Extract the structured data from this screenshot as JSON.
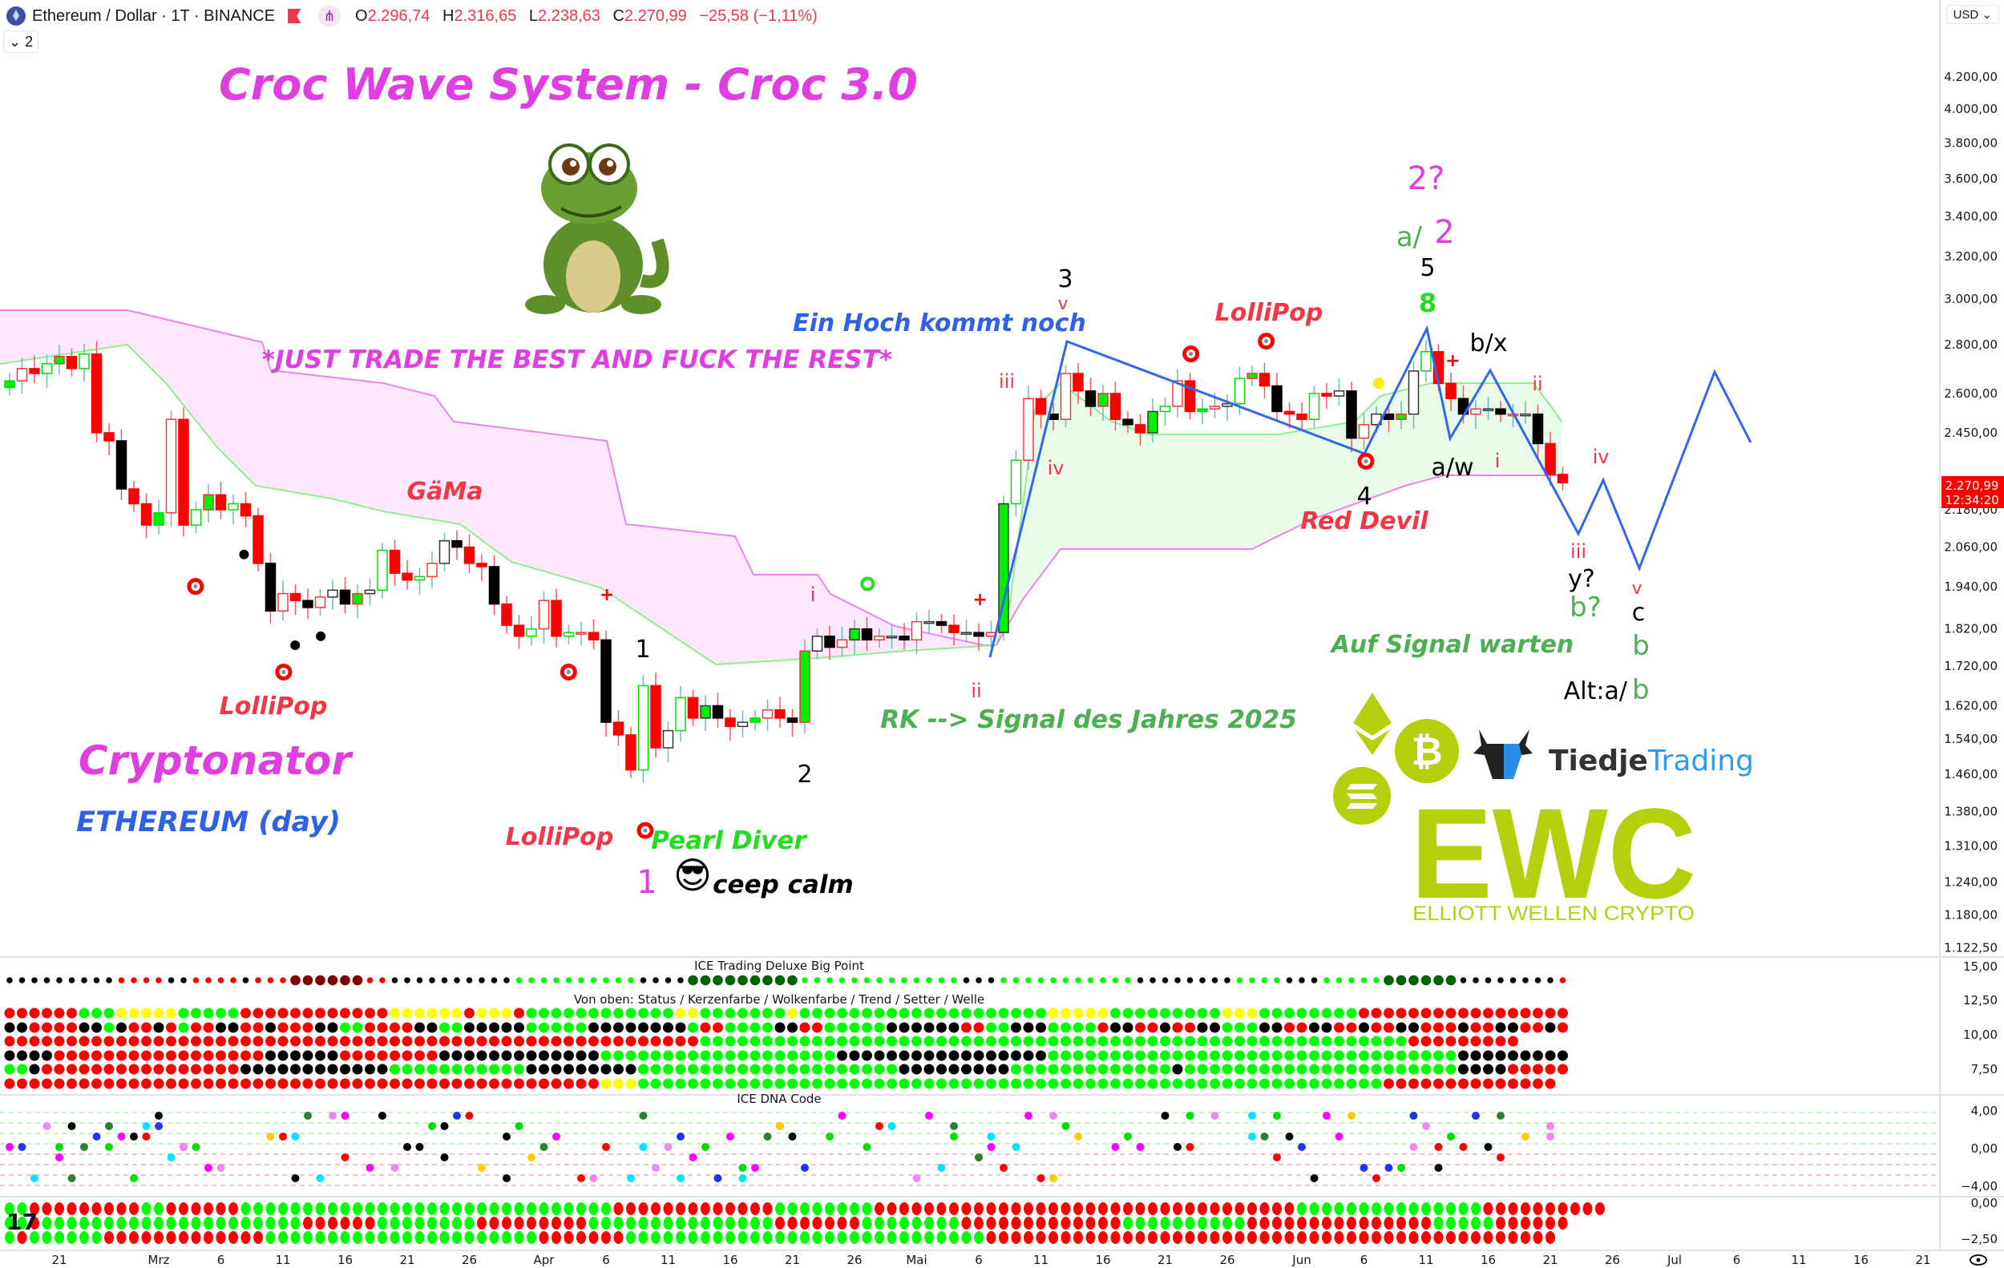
{
  "header": {
    "symbol": "Ethereum / Dollar · 1T · BINANCE",
    "o_label": "O",
    "o_value": "2.296,74",
    "h_label": "H",
    "h_value": "2.316,65",
    "l_label": "L",
    "l_value": "2.238,63",
    "c_label": "C",
    "c_value": "2.270,99",
    "change": "−25,58 (−1,11%)",
    "legend_toggle": "2",
    "icons": [
      "ethereum-logo-icon",
      "flag-icon",
      "share-icon",
      "chevron-down-icon"
    ]
  },
  "price_axis": {
    "currency": "USD",
    "labels": [
      "4.200,00",
      "4.000,00",
      "3.800,00",
      "3.600,00",
      "3.400,00",
      "3.200,00",
      "3.000,00",
      "2.800,00",
      "2.600,00",
      "2.450,00",
      "2.180,00",
      "2.060,00",
      "1.940,00",
      "1.820,00",
      "1.720,00",
      "1.620,00",
      "1.540,00",
      "1.460,00",
      "1.380,00",
      "1.310,00",
      "1.240,00",
      "1.180,00",
      "1.122,50"
    ],
    "label_values": [
      4200,
      4000,
      3800,
      3600,
      3400,
      3200,
      3000,
      2800,
      2600,
      2450,
      2180,
      2060,
      1940,
      1820,
      1720,
      1620,
      1540,
      1460,
      1380,
      1310,
      1240,
      1180,
      1122.5
    ],
    "scale": "log",
    "last_price": "2.270,99",
    "countdown": "12:34:20",
    "last_price_color": "#ff0000"
  },
  "time_axis": {
    "labels": [
      "21",
      "Mrz",
      "6",
      "11",
      "16",
      "21",
      "26",
      "Apr",
      "6",
      "11",
      "16",
      "21",
      "26",
      "Mai",
      "6",
      "11",
      "16",
      "21",
      "26",
      "Jun",
      "6",
      "11",
      "16",
      "21",
      "26",
      "Jul",
      "6",
      "11",
      "16",
      "21"
    ]
  },
  "chart": {
    "closes": [
      2650,
      2700,
      2680,
      2720,
      2750,
      2700,
      2760,
      2450,
      2420,
      2250,
      2200,
      2130,
      2170,
      2500,
      2130,
      2180,
      2230,
      2180,
      2200,
      2160,
      2010,
      1870,
      1920,
      1900,
      1880,
      1910,
      1930,
      1890,
      1920,
      1930,
      2050,
      1980,
      1960,
      1970,
      2010,
      2080,
      2060,
      2010,
      2000,
      1890,
      1830,
      1800,
      1820,
      1900,
      1800,
      1810,
      1810,
      1790,
      1580,
      1550,
      1470,
      1670,
      1520,
      1560,
      1640,
      1590,
      1620,
      1590,
      1570,
      1580,
      1590,
      1610,
      1590,
      1580,
      1760,
      1800,
      1770,
      1790,
      1820,
      1790,
      1800,
      1800,
      1790,
      1840,
      1840,
      1830,
      1810,
      1810,
      1800,
      1810,
      2200,
      2350,
      2580,
      2520,
      2500,
      2680,
      2610,
      2550,
      2600,
      2500,
      2480,
      2450,
      2530,
      2550,
      2650,
      2530,
      2540,
      2550,
      2560,
      2660,
      2680,
      2630,
      2530,
      2520,
      2500,
      2600,
      2590,
      2610,
      2430,
      2480,
      2520,
      2500,
      2520,
      2690,
      2770,
      2640,
      2580,
      2520,
      2540,
      2540,
      2520,
      2520,
      2520,
      2410,
      2300,
      2271
    ],
    "colors": {
      "magenta": "#e03ee0",
      "red": "#f23645",
      "blue": "#2e62e6",
      "green": "#4caf50",
      "lime": "#22dd22",
      "ewc": "#b5cf0c",
      "wave_line": "#3366ee"
    }
  },
  "annotations": {
    "title": "Croc Wave System - Croc 3.0",
    "motto": "*JUST TRADE THE BEST AND FUCK THE REST*",
    "ein_hoch": "Ein Hoch kommt noch",
    "lollipop_1": "LolliPop",
    "lollipop_2": "LolliPop",
    "lollipop_3": "LolliPop",
    "gaema": "GäMa",
    "cryptonator": "Cryptonator",
    "ethereum_day": "ETHEREUM (day)",
    "pearl_diver": "Pearl Diver",
    "pink_1": "1",
    "ceep_calm": "ceep calm",
    "wave_1": "1",
    "wave_2": "2",
    "wave_3": "3",
    "wave_4": "4",
    "wave_5": "5",
    "eight": "8",
    "rk_signal": "RK --> Signal des Jahres 2025",
    "red_devil": "Red Devil",
    "auf_signal": "Auf Signal warten",
    "q2": "2?",
    "a_slash": "a/",
    "two": "2",
    "b_x": "b/x",
    "a_w": "a/w",
    "sub_v_top": "v",
    "sub_iii": "iii",
    "sub_iv": "iv",
    "sub_i_left": "i",
    "sub_ii_left": "ii",
    "sub_i_right": "i",
    "sub_ii_right": "ii",
    "sub_iv_right": "iv",
    "sub_iii_right": "iii",
    "y_q": "y?",
    "b_q": "b?",
    "sub_v_right": "v",
    "c": "c",
    "b": "b",
    "alt_prefix": "Alt:a/",
    "alt_b": "b",
    "emoji": "😎"
  },
  "logo": {
    "brand_dark": "Tiedje",
    "brand_blue": "Trading",
    "ewc": "EWC",
    "ewc_sub": "ELLIOTT WELLEN CRYPTO",
    "btc_symbol": "₿"
  },
  "panels": {
    "big_point": {
      "title": "ICE Trading Deluxe Big Point",
      "row": "KKKKKKKKKRRRRKKRRRRKRRRDDDDDDRRKKKKKKKKKKGGGGGGGGGGKKKKOOOOOOOOOGGGGGGGGGGGGGKKKGGGGGGGGGGGKKKKKKKKGGGGKKKGGGGGOOOOOOKKKKKKKKR"
    },
    "status": {
      "title": "Von oben: Status / Kerzenfarbe / Wolkenfarbe / Trend / Setter / Welle",
      "rows": [
        "RRRRRRGGGYYYYYGGGGGRRRRRRRRRRRRYYYYYYRYYYRGGGGGGGGGGGGYYGGGGGGGYGGGGGGGGGGGGGGGGGGGGYYYYYGGGGGGGGGYYYGGGGGGGGRRRRRRRRRRRRRRRRR",
        "KKRRRRKKGKRRKRGRRKKRRKRRRKKGGRRRRKKGGKKKKKGGGGGKKKKKKKKGRRGGGGKKRRGGGGGKKKKKKRRGGKKKGGGGRKKRRKRRKKGGGKKRRKKRRKRRKKRRRKRRKKRRKR",
        "RRRRRRRRRRRRRRRRRRRRRRRRRRRRRRRRRRRRRRRRRRRRRRRRRRRRRRRRGGGGGGGGGGGGGGGGGGGGGGGGGGGGGGGGGGGGGGGGGGGGGGGGGGGGGGGGGRRRRRRRRR",
        "KKKKRRRRRRRRRRRRRRRRRKKKKKKRRRRRRRRKKKKKKKKKKKKKGGGGGGGGGGGGGGGGGGGKKKKKKKKKKKKKKKKKGGGGGGGGGGGGGGGGGGGGGGGGGGGGGGGGGKKKKKKKKK",
        "GGKRRRRRRRRRRRRRRRRKKKKKKKKKKKKGGGGGGGGGGGKKKKKKKKKGGGGGGGGGGGGGGGGGGGGGKKKKKKKKKGGGGGGGGGGGGGKGGGGGGGGGGGGGGGGGGGGGGKKKKRRRRR",
        "RRRRRRRRRRRRRRRRRRRRRRRRRRRRRRRRRRRRRRRRRRRRRRRRYYYGGGGGGGGGGGGGGGGGGGGGGGGGGGGGGGGGGGGGGGGGGGGGGGGGGGGGGGGGGGGRRRRRRRRRRRRRR"
      ]
    },
    "dna": {
      "title": "ICE DNA Code"
    },
    "bottom": {
      "rows": [
        "GGRRRRRRRRRGGRRRRRRGGGGGGGGGGGGGGGGGGGGGGGGGGGGGGRRRRRRRRRRRRRGGGGGGGGRRRRRRRRRRRRRRRRRRRRRRRRRRRRRRRRRRGGGGGGGGGGGGGGGRRRRRRRRRR",
        "GGRGGGGGGGGGGGGGGGGGGGGGRRRRRRGGGGGGGGRRRRRRRRRGGGGGGGGGGGGGGGRRRRRRRGGGGGGGGRRRRRRRRRRRRRGGGGGGGGGGRRRRRRRRRRRRRRRGGGGGRRRRRR",
        "GRGGGGGGRRRRRRRRRRRRRGGGGGGGGGGGGGGGGGGGGGGRRRRRRRGGGGGGGGGGGGGGGGGGGGGGGGGGGGGRRRRRRRRRRRRRRRRRRRRRRRRRRRRRRRRRRRRRRRRRRRRRR"
      ]
    },
    "axis_labels": {
      "p1": [
        "15,00",
        "12,50",
        "10,00",
        "7,50"
      ],
      "p2": [
        "4,00",
        "0,00",
        "−4,00"
      ],
      "p3": [
        "0,00",
        "−2,50"
      ]
    }
  }
}
